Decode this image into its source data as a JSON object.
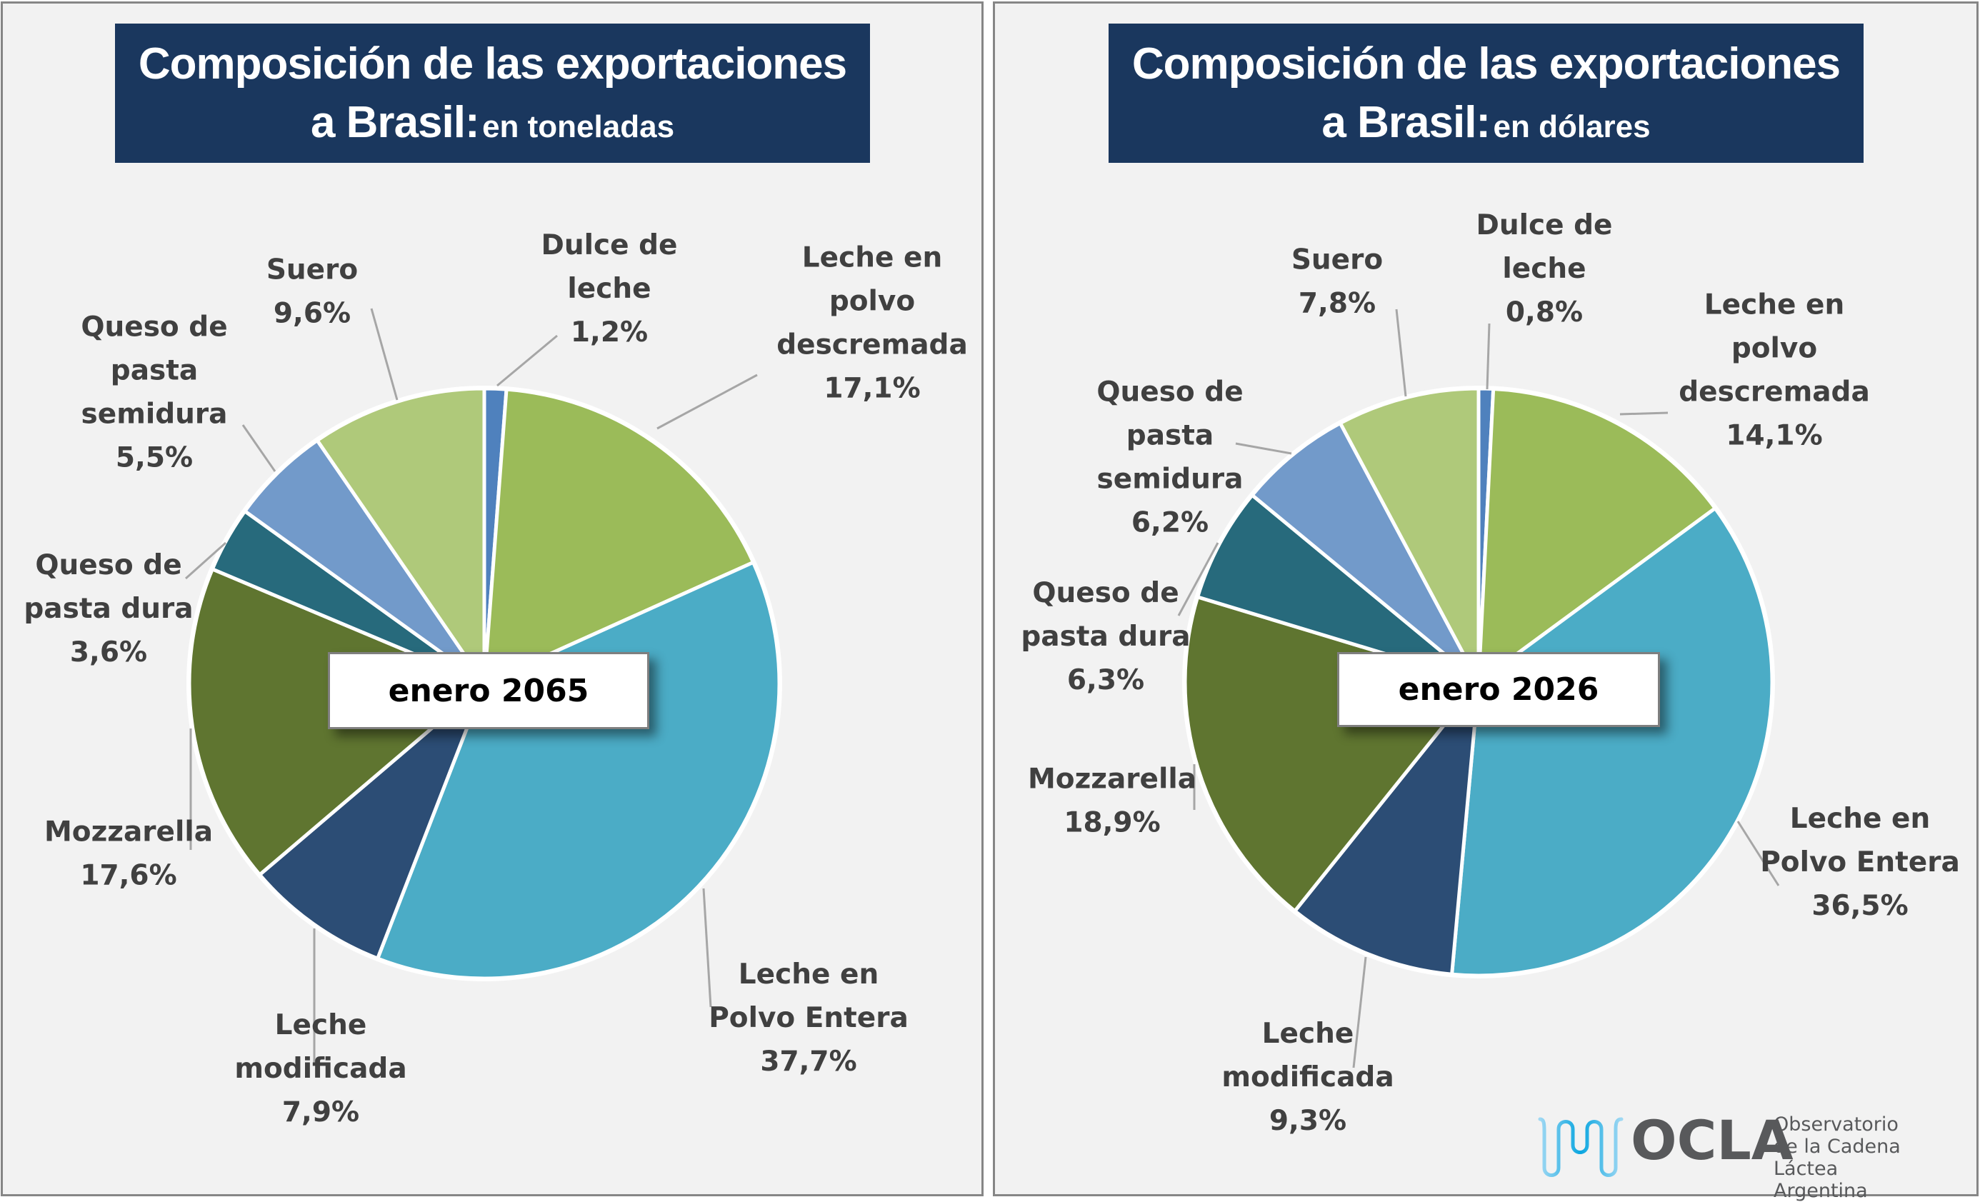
{
  "chart_data": [
    {
      "type": "pie",
      "title": "Composición de las exportaciones a Brasil:",
      "title_line1": "Composición de las exportaciones",
      "title_line2_main": "a Brasil:",
      "subtitle": "en toneladas",
      "period_label": "enero 2065",
      "unit": "%",
      "start": "12 o'clock, clockwise",
      "slices": [
        {
          "name": "Dulce de leche",
          "lines": [
            "Dulce de",
            "leche"
          ],
          "value": 1.2,
          "label": "1,2%",
          "color": "#4f81bd"
        },
        {
          "name": "Leche en polvo descremada",
          "lines": [
            "Leche en",
            "polvo",
            "descremada"
          ],
          "value": 17.1,
          "label": "17,1%",
          "color": "#9bbb59"
        },
        {
          "name": "Leche en Polvo Entera",
          "lines": [
            "Leche en",
            "Polvo Entera"
          ],
          "value": 37.7,
          "label": "37,7%",
          "color": "#4bacc6"
        },
        {
          "name": "Leche modificada",
          "lines": [
            "Leche",
            "modificada"
          ],
          "value": 7.9,
          "label": "7,9%",
          "color": "#2c4d75"
        },
        {
          "name": "Mozzarella",
          "lines": [
            "Mozzarella"
          ],
          "value": 17.6,
          "label": "17,6%",
          "color": "#5f7530"
        },
        {
          "name": "Queso de pasta dura",
          "lines": [
            "Queso de",
            "pasta dura"
          ],
          "value": 3.6,
          "label": "3,6%",
          "color": "#276a7c"
        },
        {
          "name": "Queso de pasta semidura",
          "lines": [
            "Queso de",
            "pasta",
            "semidura"
          ],
          "value": 5.5,
          "label": "5,5%",
          "color": "#729aca"
        },
        {
          "name": "Suero",
          "lines": [
            "Suero"
          ],
          "value": 9.6,
          "label": "9,6%",
          "color": "#afc97a"
        }
      ]
    },
    {
      "type": "pie",
      "title": "Composición de las exportaciones a Brasil:",
      "title_line1": "Composición de las exportaciones",
      "title_line2_main": "a Brasil:",
      "subtitle": "en dólares",
      "period_label": "enero 2026",
      "unit": "%",
      "start": "12 o'clock, clockwise",
      "slices": [
        {
          "name": "Dulce de leche",
          "lines": [
            "Dulce de",
            "leche"
          ],
          "value": 0.8,
          "label": "0,8%",
          "color": "#4f81bd"
        },
        {
          "name": "Leche en polvo descremada",
          "lines": [
            "Leche en",
            "polvo",
            "descremada"
          ],
          "value": 14.1,
          "label": "14,1%",
          "color": "#9bbb59"
        },
        {
          "name": "Leche en Polvo Entera",
          "lines": [
            "Leche en",
            "Polvo Entera"
          ],
          "value": 36.5,
          "label": "36,5%",
          "color": "#4bacc6"
        },
        {
          "name": "Leche modificada",
          "lines": [
            "Leche",
            "modificada"
          ],
          "value": 9.3,
          "label": "9,3%",
          "color": "#2c4d75"
        },
        {
          "name": "Mozzarella",
          "lines": [
            "Mozzarella"
          ],
          "value": 18.9,
          "label": "18,9%",
          "color": "#5f7530"
        },
        {
          "name": "Queso de pasta dura",
          "lines": [
            "Queso de",
            "pasta dura"
          ],
          "value": 6.3,
          "label": "6,3%",
          "color": "#276a7c"
        },
        {
          "name": "Queso de pasta semidura",
          "lines": [
            "Queso de",
            "pasta",
            "semidura"
          ],
          "value": 6.2,
          "label": "6,2%",
          "color": "#729aca"
        },
        {
          "name": "Suero",
          "lines": [
            "Suero"
          ],
          "value": 7.8,
          "label": "7,8%",
          "color": "#afc97a"
        }
      ]
    }
  ],
  "colors": {
    "title_bg": "#1a375e",
    "panel_bg": "#f2f2f2",
    "label_text": "#404040",
    "leader_line": "#a6a6a6"
  },
  "logo": {
    "icon": "milk-wave-icon",
    "acronym": "OCLA",
    "line1": "Observatorio",
    "line2": "de la Cadena Láctea",
    "line3": "Argentina"
  }
}
